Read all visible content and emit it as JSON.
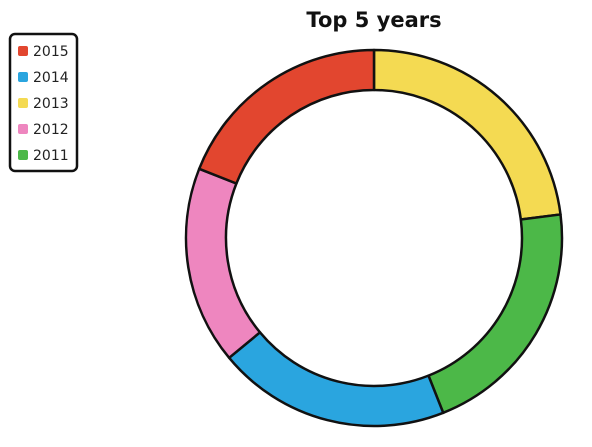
{
  "chart_data": {
    "type": "pie",
    "variant": "donut",
    "title": "Top 5 years",
    "legend_position": "top-left",
    "categories": [
      "2015",
      "2014",
      "2013",
      "2012",
      "2011"
    ],
    "values": [
      19,
      20,
      23,
      17,
      21
    ],
    "colors": [
      "#e2462f",
      "#2aa5df",
      "#f4da52",
      "#ee86bf",
      "#4cb848"
    ],
    "segment_order": [
      "2013",
      "2011",
      "2014",
      "2012",
      "2015"
    ]
  }
}
